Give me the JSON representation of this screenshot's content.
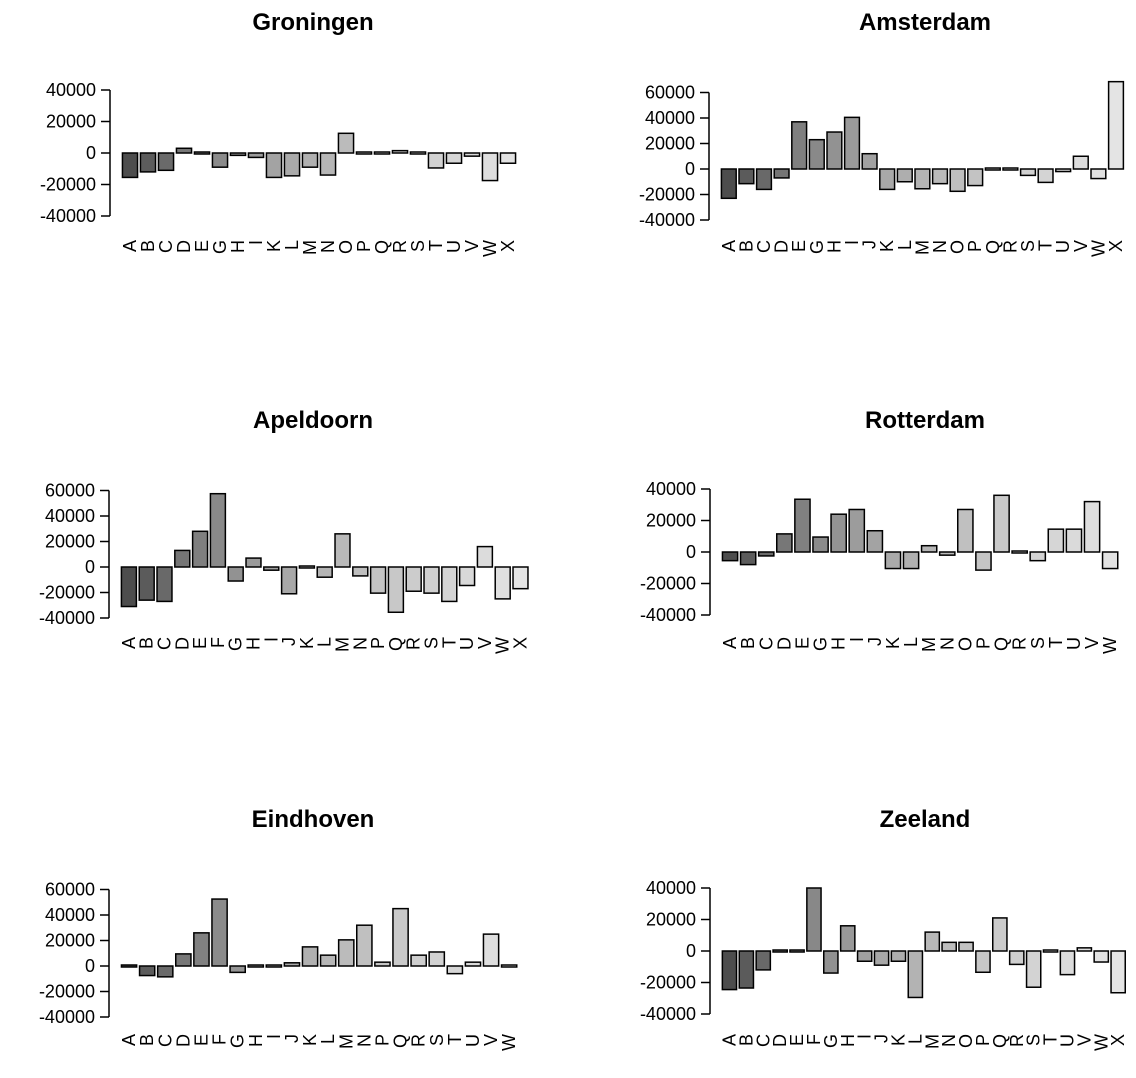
{
  "chart_data": [
    {
      "type": "bar",
      "title": "Groningen",
      "categories": [
        "A",
        "B",
        "C",
        "D",
        "E",
        "G",
        "H",
        "I",
        "K",
        "L",
        "M",
        "N",
        "O",
        "P",
        "Q",
        "R",
        "S",
        "T",
        "U",
        "V",
        "W",
        "X"
      ],
      "values": [
        -15500,
        -12000,
        -11000,
        3000,
        -500,
        -9000,
        -1500,
        -2800,
        -15500,
        -14500,
        -9000,
        -14000,
        12500,
        -500,
        -1000,
        1500,
        -1000,
        -9500,
        -6500,
        -2000,
        -17500,
        -6500
      ],
      "colors": [
        "#4d4d4d",
        "#5c5c5c",
        "#6a6a6a",
        "#777777",
        "#818181",
        "#8b8b8b",
        "#949494",
        "#9c9c9c",
        "#a3a3a3",
        "#aaaaaa",
        "#b0b0b0",
        "#b6b6b6",
        "#bbbbbb",
        "#c0c0c0",
        "#c5c5c5",
        "#cacaca",
        "#cecece",
        "#d2d2d2",
        "#d6d6d6",
        "#dadada",
        "#dedede",
        "#e2e2e2"
      ],
      "yticks": [
        -40000,
        -20000,
        0,
        20000,
        40000
      ],
      "ylim": [
        -40000,
        40000
      ]
    },
    {
      "type": "bar",
      "title": "Amsterdam",
      "categories": [
        "A",
        "B",
        "C",
        "D",
        "E",
        "G",
        "H",
        "I",
        "J",
        "K",
        "L",
        "M",
        "N",
        "O",
        "P",
        "Q",
        "R",
        "S",
        "T",
        "U",
        "V",
        "W",
        "X"
      ],
      "values": [
        -23000,
        -11500,
        -16000,
        -7000,
        37000,
        23000,
        29000,
        40500,
        12000,
        -16000,
        -10000,
        -15500,
        -11500,
        -17500,
        -13000,
        -1000,
        -500,
        -5000,
        -10500,
        -2000,
        10000,
        -7500,
        68500
      ],
      "colors": [
        "#4d4d4d",
        "#5b5b5b",
        "#696969",
        "#757575",
        "#7f7f7f",
        "#898989",
        "#929292",
        "#9a9a9a",
        "#a1a1a1",
        "#a8a8a8",
        "#aeaeae",
        "#b4b4b4",
        "#b9b9b9",
        "#bebebe",
        "#c3c3c3",
        "#c8c8c8",
        "#cccccc",
        "#d0d0d0",
        "#d4d4d4",
        "#d8d8d8",
        "#dcdcdc",
        "#e0e0e0",
        "#e4e4e4"
      ],
      "yticks": [
        -40000,
        -20000,
        0,
        20000,
        40000,
        60000
      ],
      "ylim": [
        -42000,
        70000
      ]
    },
    {
      "type": "bar",
      "title": "Apeldoorn",
      "categories": [
        "A",
        "B",
        "C",
        "D",
        "E",
        "F",
        "G",
        "H",
        "I",
        "J",
        "K",
        "L",
        "M",
        "N",
        "P",
        "Q",
        "R",
        "S",
        "T",
        "U",
        "V",
        "W",
        "X"
      ],
      "values": [
        -31000,
        -26000,
        -27000,
        13000,
        28000,
        57500,
        -11000,
        7000,
        -2500,
        -21000,
        500,
        -8000,
        26000,
        -7000,
        -20500,
        -35500,
        -19000,
        -20500,
        -27000,
        -14500,
        16000,
        -25000,
        -17000
      ],
      "colors": [
        "#4d4d4d",
        "#5b5b5b",
        "#696969",
        "#757575",
        "#7f7f7f",
        "#898989",
        "#929292",
        "#9a9a9a",
        "#a1a1a1",
        "#a8a8a8",
        "#aeaeae",
        "#b4b4b4",
        "#b9b9b9",
        "#bebebe",
        "#c3c3c3",
        "#c8c8c8",
        "#cccccc",
        "#d0d0d0",
        "#d4d4d4",
        "#d8d8d8",
        "#dcdcdc",
        "#e0e0e0",
        "#e4e4e4"
      ],
      "yticks": [
        -40000,
        -20000,
        0,
        20000,
        40000,
        60000
      ],
      "ylim": [
        -42000,
        62000
      ]
    },
    {
      "type": "bar",
      "title": "Rotterdam",
      "categories": [
        "A",
        "B",
        "C",
        "D",
        "E",
        "G",
        "H",
        "I",
        "J",
        "K",
        "L",
        "M",
        "N",
        "O",
        "P",
        "Q",
        "R",
        "S",
        "T",
        "U",
        "V",
        "W"
      ],
      "values": [
        -5500,
        -8000,
        -2500,
        11500,
        33500,
        9500,
        24000,
        27000,
        13500,
        -10500,
        -10500,
        4000,
        -2000,
        27000,
        -11500,
        36000,
        500,
        -5500,
        14500,
        14500,
        32000,
        -10500
      ],
      "colors": [
        "#4d4d4d",
        "#5c5c5c",
        "#6a6a6a",
        "#777777",
        "#818181",
        "#8b8b8b",
        "#949494",
        "#9c9c9c",
        "#a3a3a3",
        "#aaaaaa",
        "#b0b0b0",
        "#b6b6b6",
        "#bbbbbb",
        "#c0c0c0",
        "#c5c5c5",
        "#cacaca",
        "#cecece",
        "#d2d2d2",
        "#d6d6d6",
        "#dadada",
        "#dedede",
        "#e2e2e2"
      ],
      "yticks": [
        -40000,
        -20000,
        0,
        20000,
        40000
      ],
      "ylim": [
        -40000,
        40000
      ]
    },
    {
      "type": "bar",
      "title": "Eindhoven",
      "categories": [
        "A",
        "B",
        "C",
        "D",
        "E",
        "F",
        "G",
        "H",
        "I",
        "J",
        "K",
        "L",
        "M",
        "N",
        "P",
        "Q",
        "R",
        "S",
        "T",
        "U",
        "V",
        "W"
      ],
      "values": [
        -1500,
        -7500,
        -8500,
        9500,
        26000,
        52500,
        -5000,
        -1000,
        500,
        2500,
        15000,
        8500,
        20500,
        32000,
        3000,
        45000,
        8500,
        11000,
        -6000,
        3000,
        25000,
        1500
      ],
      "colors": [
        "#4d4d4d",
        "#5c5c5c",
        "#6a6a6a",
        "#777777",
        "#818181",
        "#8b8b8b",
        "#949494",
        "#9c9c9c",
        "#a3a3a3",
        "#aaaaaa",
        "#b0b0b0",
        "#b6b6b6",
        "#bbbbbb",
        "#c0c0c0",
        "#c5c5c5",
        "#cacaca",
        "#cecece",
        "#d2d2d2",
        "#d6d6d6",
        "#dadada",
        "#dedede",
        "#e2e2e2"
      ],
      "yticks": [
        -40000,
        -20000,
        0,
        20000,
        40000,
        60000
      ],
      "ylim": [
        -42000,
        62000
      ]
    },
    {
      "type": "bar",
      "title": "Zeeland",
      "categories": [
        "A",
        "B",
        "C",
        "D",
        "E",
        "F",
        "G",
        "H",
        "I",
        "J",
        "K",
        "L",
        "M",
        "N",
        "O",
        "P",
        "Q",
        "R",
        "S",
        "T",
        "U",
        "V",
        "W",
        "X"
      ],
      "values": [
        -24500,
        -23500,
        -12000,
        -500,
        1000,
        40000,
        -14000,
        16000,
        -6500,
        -9000,
        -6500,
        -29500,
        12000,
        5500,
        5500,
        -13500,
        21000,
        -8500,
        -23000,
        -500,
        -15000,
        2000,
        -7000,
        -26500
      ],
      "colors": [
        "#4d4d4d",
        "#5b5b5b",
        "#686868",
        "#747474",
        "#7e7e7e",
        "#888888",
        "#919191",
        "#999999",
        "#a0a0a0",
        "#a7a7a7",
        "#adadad",
        "#b3b3b3",
        "#b8b8b8",
        "#bdbdbd",
        "#c2c2c2",
        "#c7c7c7",
        "#cbcbcb",
        "#cfcfcf",
        "#d3d3d3",
        "#d7d7d7",
        "#dbdbdb",
        "#dfdfdf",
        "#e2e2e2",
        "#e5e5e5"
      ],
      "yticks": [
        -40000,
        -20000,
        0,
        20000,
        40000
      ],
      "ylim": [
        -40000,
        40000
      ]
    }
  ]
}
